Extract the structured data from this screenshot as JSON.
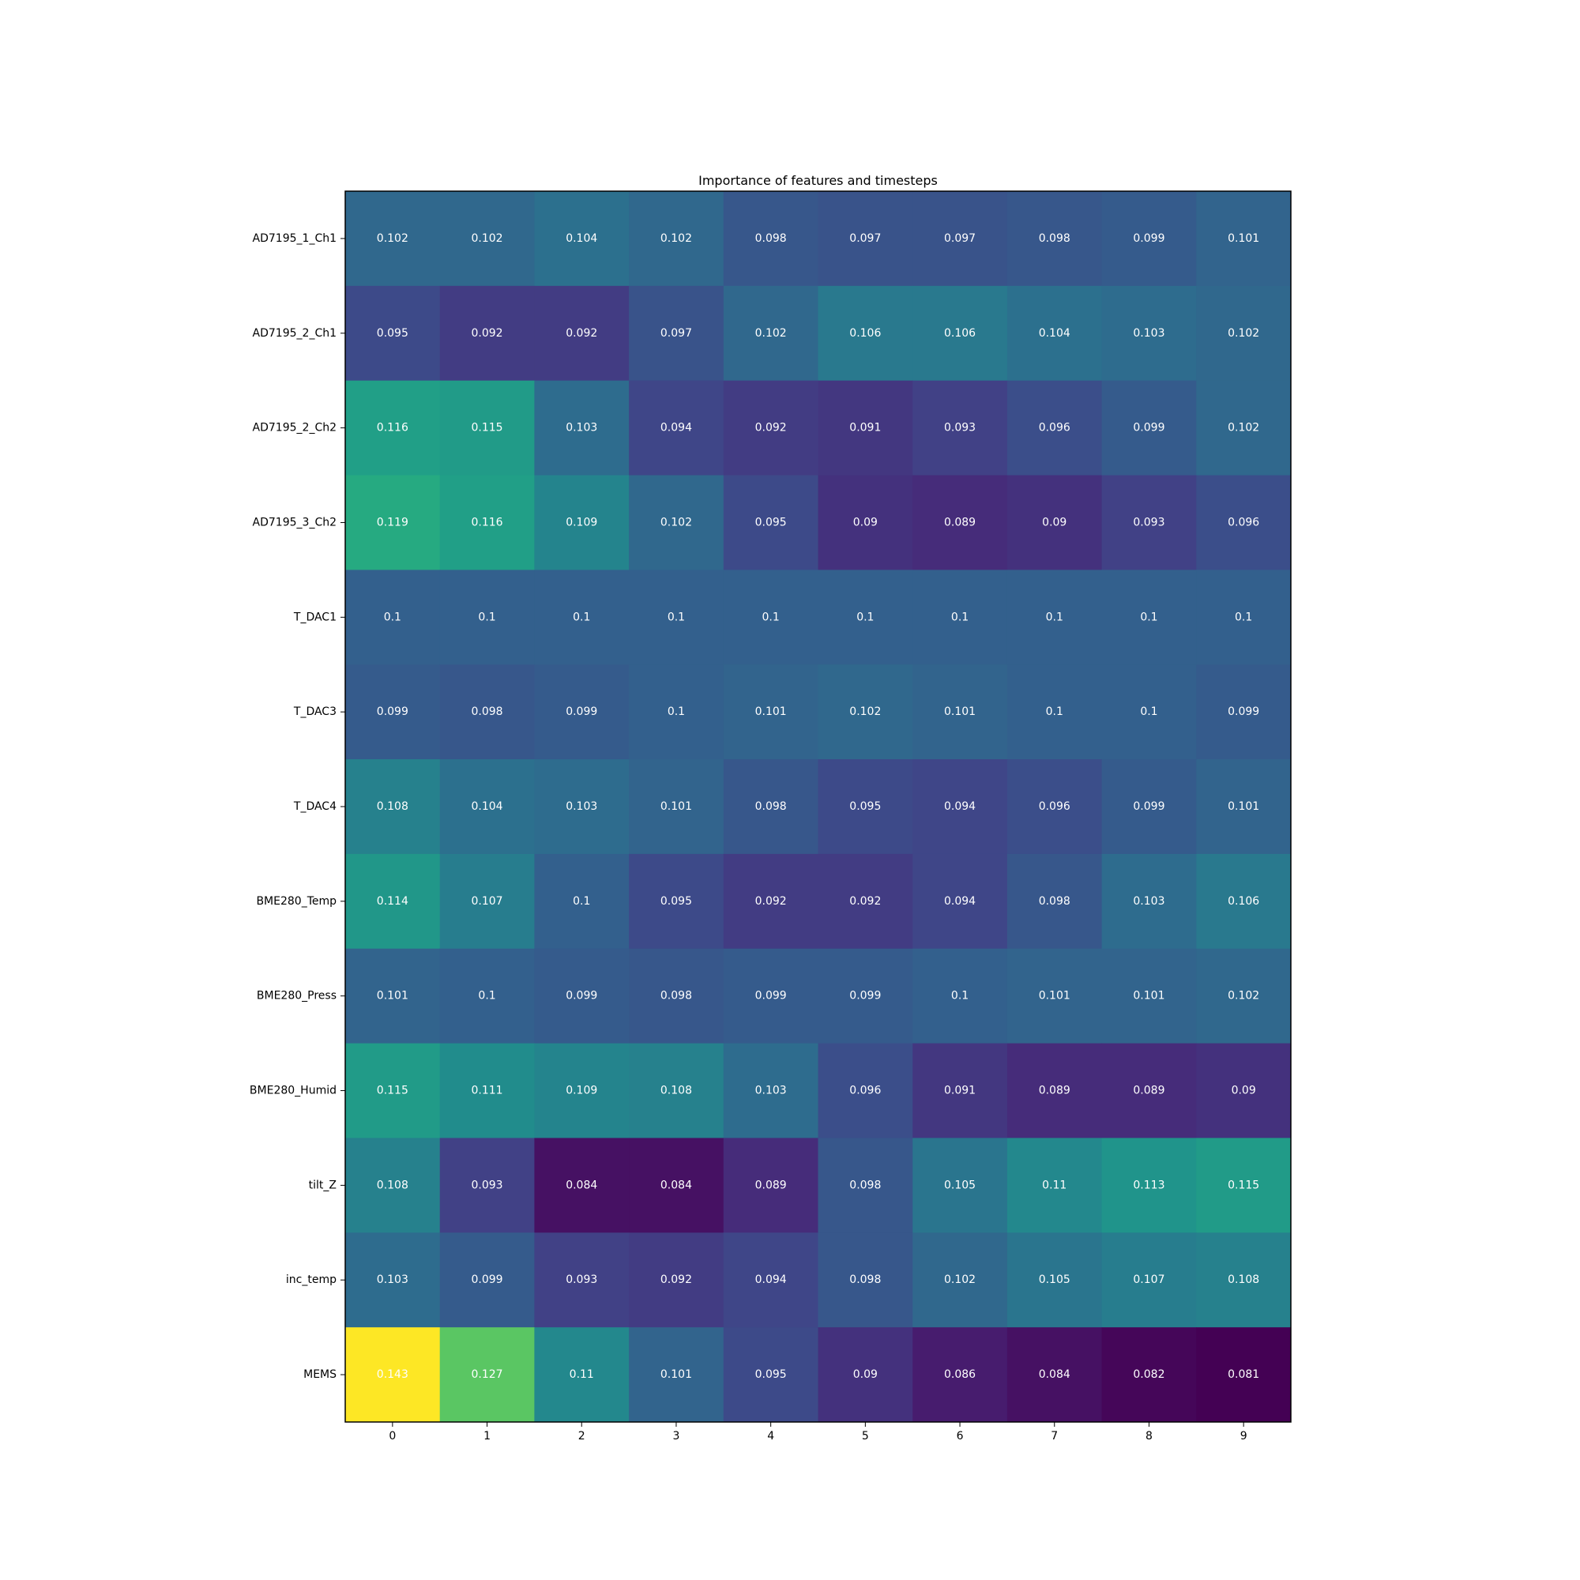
{
  "chart_data": {
    "type": "heatmap",
    "title": "Importance of features and timesteps",
    "xlabel": "",
    "ylabel": "",
    "colormap": "viridis",
    "color_range": [
      0.081,
      0.143
    ],
    "x": [
      "0",
      "1",
      "2",
      "3",
      "4",
      "5",
      "6",
      "7",
      "8",
      "9"
    ],
    "y": [
      "AD7195_1_Ch1",
      "AD7195_2_Ch1",
      "AD7195_2_Ch2",
      "AD7195_3_Ch2",
      "T_DAC1",
      "T_DAC3",
      "T_DAC4",
      "BME280_Temp",
      "BME280_Press",
      "BME280_Humid",
      "tilt_Z",
      "inc_temp",
      "MEMS"
    ],
    "values": [
      [
        0.102,
        0.102,
        0.104,
        0.102,
        0.098,
        0.097,
        0.097,
        0.098,
        0.099,
        0.101
      ],
      [
        0.095,
        0.092,
        0.092,
        0.097,
        0.102,
        0.106,
        0.106,
        0.104,
        0.103,
        0.102
      ],
      [
        0.116,
        0.115,
        0.103,
        0.094,
        0.092,
        0.091,
        0.093,
        0.096,
        0.099,
        0.102
      ],
      [
        0.119,
        0.116,
        0.109,
        0.102,
        0.095,
        0.09,
        0.089,
        0.09,
        0.093,
        0.096
      ],
      [
        0.1,
        0.1,
        0.1,
        0.1,
        0.1,
        0.1,
        0.1,
        0.1,
        0.1,
        0.1
      ],
      [
        0.099,
        0.098,
        0.099,
        0.1,
        0.101,
        0.102,
        0.101,
        0.1,
        0.1,
        0.099
      ],
      [
        0.108,
        0.104,
        0.103,
        0.101,
        0.098,
        0.095,
        0.094,
        0.096,
        0.099,
        0.101
      ],
      [
        0.114,
        0.107,
        0.1,
        0.095,
        0.092,
        0.092,
        0.094,
        0.098,
        0.103,
        0.106
      ],
      [
        0.101,
        0.1,
        0.099,
        0.098,
        0.099,
        0.099,
        0.1,
        0.101,
        0.101,
        0.102
      ],
      [
        0.115,
        0.111,
        0.109,
        0.108,
        0.103,
        0.096,
        0.091,
        0.089,
        0.089,
        0.09
      ],
      [
        0.108,
        0.093,
        0.084,
        0.084,
        0.089,
        0.098,
        0.105,
        0.11,
        0.113,
        0.115
      ],
      [
        0.103,
        0.099,
        0.093,
        0.092,
        0.094,
        0.098,
        0.102,
        0.105,
        0.107,
        0.108
      ],
      [
        0.143,
        0.127,
        0.11,
        0.101,
        0.095,
        0.09,
        0.086,
        0.084,
        0.082,
        0.081
      ]
    ],
    "grid": false,
    "legend": "none"
  }
}
